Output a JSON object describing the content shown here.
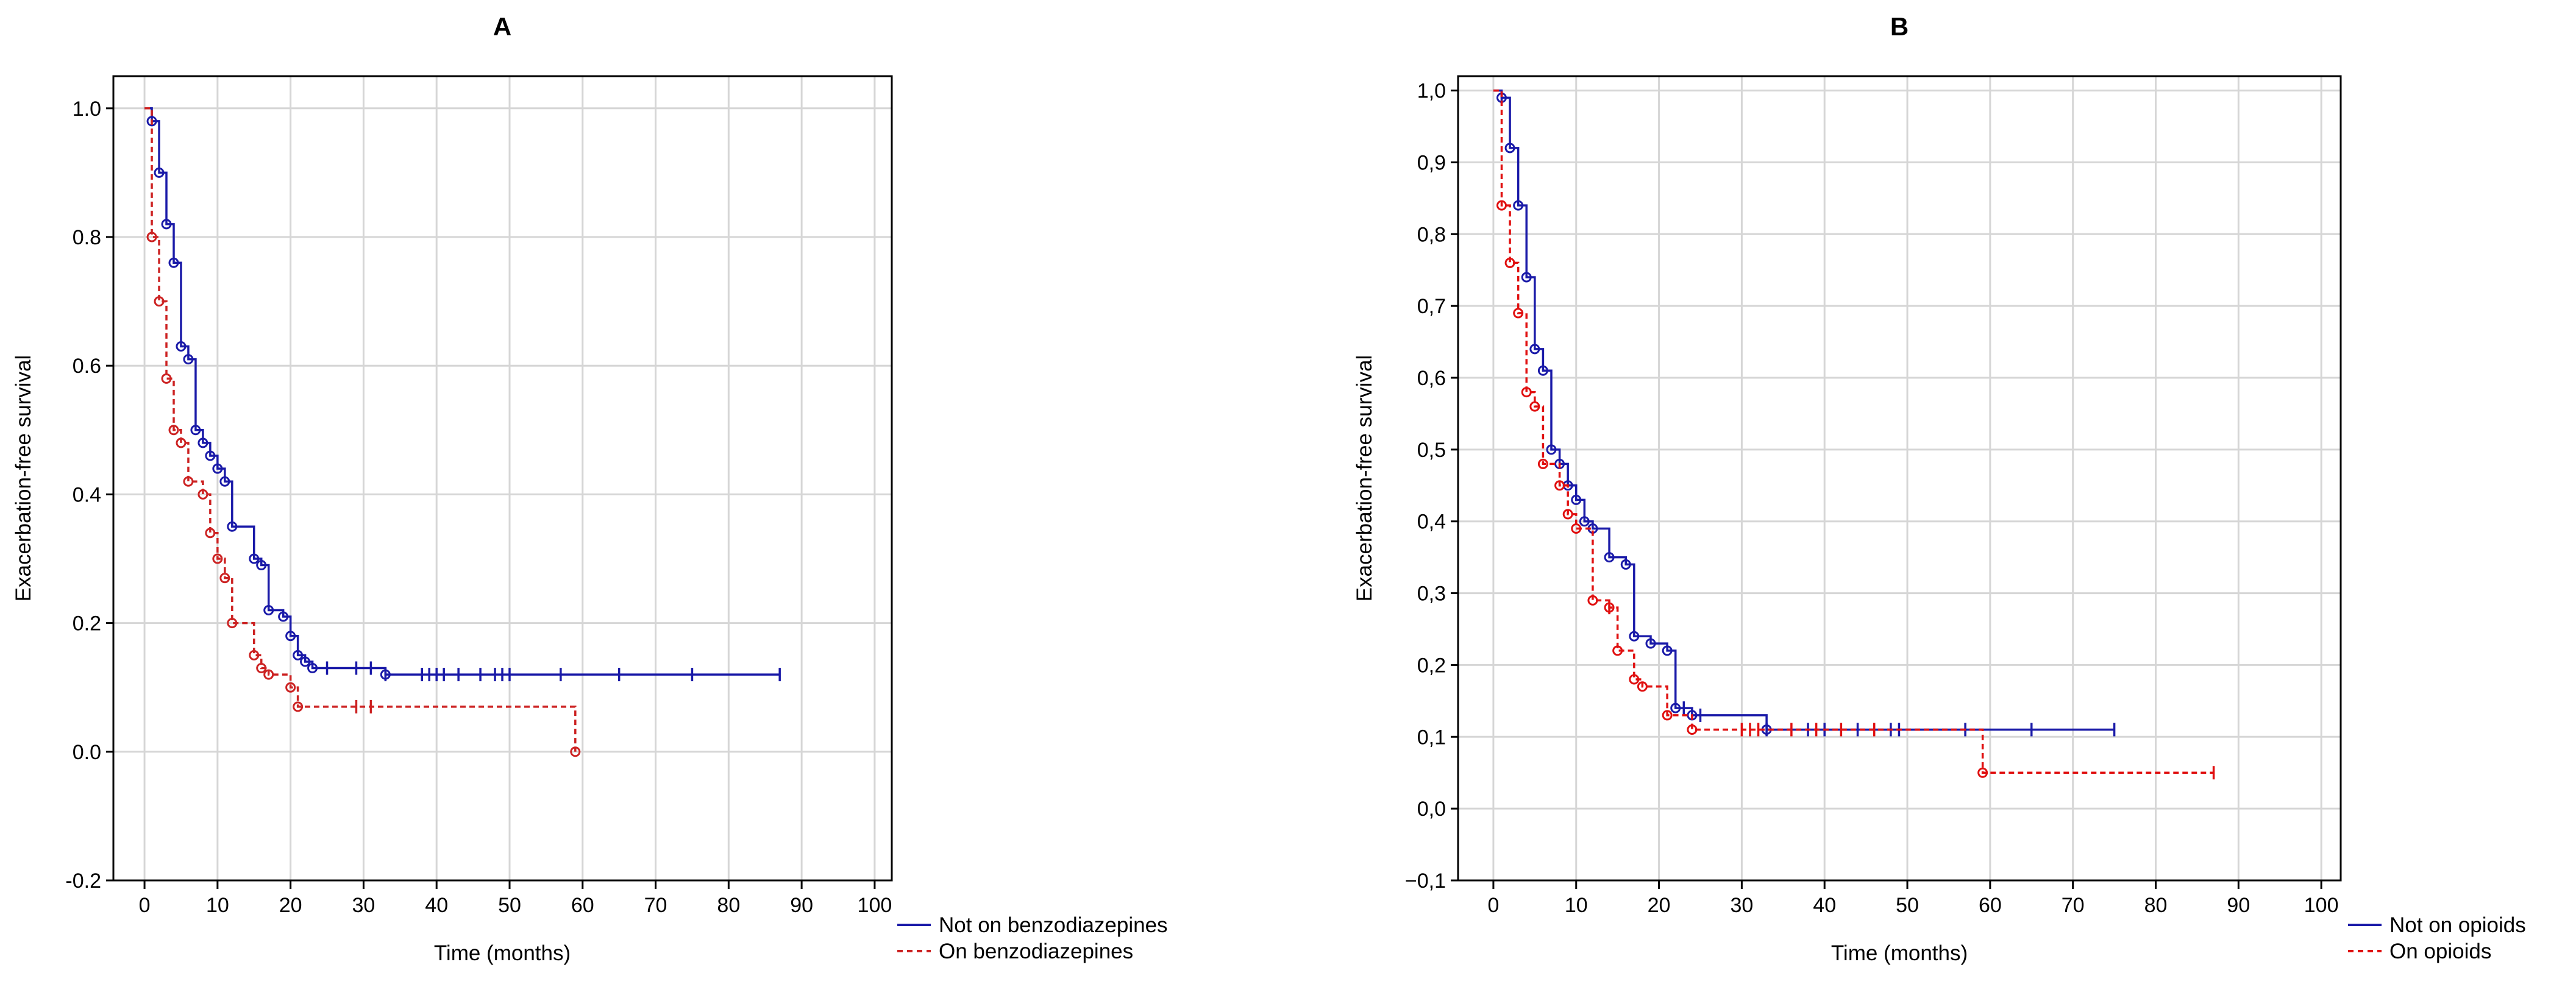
{
  "chart_data": [
    {
      "type": "line",
      "title": "A",
      "xlabel": "Time (months)",
      "ylabel": "Exacerbation-free survival",
      "xlim": [
        0,
        100
      ],
      "ylim": [
        -0.2,
        1.05
      ],
      "xticks": [
        "0",
        "10",
        "20",
        "30",
        "40",
        "50",
        "60",
        "70",
        "80",
        "90",
        "100"
      ],
      "yticks": [
        "-0.2",
        "0.0",
        "0.2",
        "0.4",
        "0.6",
        "0.8",
        "1.0"
      ],
      "grid": true,
      "legend_position": "bottom-right, outside plot",
      "series": [
        {
          "name": "Not on benzodiazepines",
          "color": "#1a1aa8",
          "style": "solid",
          "steps": [
            [
              0,
              1.0
            ],
            [
              1,
              0.98
            ],
            [
              2,
              0.9
            ],
            [
              3,
              0.82
            ],
            [
              4,
              0.76
            ],
            [
              5,
              0.63
            ],
            [
              6,
              0.61
            ],
            [
              7,
              0.5
            ],
            [
              8,
              0.48
            ],
            [
              9,
              0.46
            ],
            [
              10,
              0.44
            ],
            [
              11,
              0.42
            ],
            [
              12,
              0.35
            ],
            [
              14,
              0.35
            ],
            [
              15,
              0.3
            ],
            [
              16,
              0.29
            ],
            [
              17,
              0.22
            ],
            [
              19,
              0.21
            ],
            [
              20,
              0.18
            ],
            [
              21,
              0.15
            ],
            [
              22,
              0.14
            ],
            [
              23,
              0.13
            ],
            [
              25,
              0.13
            ],
            [
              33,
              0.12
            ],
            [
              87,
              0.12
            ]
          ],
          "censored": [
            25,
            29,
            31,
            33,
            38,
            39,
            40,
            41,
            43,
            46,
            48,
            49,
            50,
            57,
            65,
            75,
            87
          ]
        },
        {
          "name": "On benzodiazepines",
          "color": "#cc2222",
          "style": "dashed",
          "steps": [
            [
              0,
              1.0
            ],
            [
              1,
              0.8
            ],
            [
              2,
              0.7
            ],
            [
              3,
              0.58
            ],
            [
              4,
              0.5
            ],
            [
              5,
              0.48
            ],
            [
              6,
              0.42
            ],
            [
              8,
              0.4
            ],
            [
              9,
              0.34
            ],
            [
              10,
              0.3
            ],
            [
              11,
              0.27
            ],
            [
              12,
              0.2
            ],
            [
              14,
              0.2
            ],
            [
              15,
              0.15
            ],
            [
              16,
              0.13
            ],
            [
              17,
              0.12
            ],
            [
              20,
              0.1
            ],
            [
              21,
              0.07
            ],
            [
              58,
              0.07
            ],
            [
              59,
              0.0
            ]
          ],
          "censored": [
            29,
            31
          ]
        }
      ]
    },
    {
      "type": "line",
      "title": "B",
      "xlabel": "Time (months)",
      "ylabel": "Exacerbation-free survival",
      "xlim": [
        0,
        100
      ],
      "ylim": [
        -0.1,
        1.02
      ],
      "xticks": [
        "0",
        "10",
        "20",
        "30",
        "40",
        "50",
        "60",
        "70",
        "80",
        "90",
        "100"
      ],
      "yticks": [
        "−0,1",
        "0,0",
        "0,1",
        "0,2",
        "0,3",
        "0,4",
        "0,5",
        "0,6",
        "0,7",
        "0,8",
        "0,9",
        "1,0"
      ],
      "grid": true,
      "legend_position": "bottom-right, outside plot",
      "series": [
        {
          "name": "Not on opioids",
          "color": "#1a1aa8",
          "style": "solid",
          "steps": [
            [
              0,
              1.0
            ],
            [
              1,
              0.99
            ],
            [
              2,
              0.92
            ],
            [
              3,
              0.84
            ],
            [
              4,
              0.74
            ],
            [
              5,
              0.64
            ],
            [
              6,
              0.61
            ],
            [
              7,
              0.5
            ],
            [
              8,
              0.48
            ],
            [
              9,
              0.45
            ],
            [
              10,
              0.43
            ],
            [
              11,
              0.4
            ],
            [
              12,
              0.39
            ],
            [
              14,
              0.35
            ],
            [
              16,
              0.34
            ],
            [
              17,
              0.24
            ],
            [
              19,
              0.23
            ],
            [
              21,
              0.22
            ],
            [
              22,
              0.14
            ],
            [
              24,
              0.13
            ],
            [
              33,
              0.11
            ],
            [
              75,
              0.11
            ]
          ],
          "censored": [
            1,
            23,
            25,
            33,
            38,
            40,
            44,
            48,
            49,
            57,
            65,
            75
          ]
        },
        {
          "name": "On opioids",
          "color": "#e01010",
          "style": "dashed",
          "steps": [
            [
              0,
              1.0
            ],
            [
              1,
              0.84
            ],
            [
              2,
              0.76
            ],
            [
              3,
              0.69
            ],
            [
              4,
              0.58
            ],
            [
              5,
              0.56
            ],
            [
              6,
              0.48
            ],
            [
              8,
              0.45
            ],
            [
              9,
              0.41
            ],
            [
              10,
              0.39
            ],
            [
              12,
              0.29
            ],
            [
              14,
              0.28
            ],
            [
              15,
              0.22
            ],
            [
              17,
              0.18
            ],
            [
              18,
              0.17
            ],
            [
              21,
              0.13
            ],
            [
              24,
              0.11
            ],
            [
              59,
              0.11
            ],
            [
              59.1,
              0.05
            ],
            [
              87,
              0.05
            ]
          ],
          "censored": [
            14,
            30,
            31,
            32,
            36,
            39,
            42,
            46,
            87
          ]
        }
      ]
    }
  ]
}
